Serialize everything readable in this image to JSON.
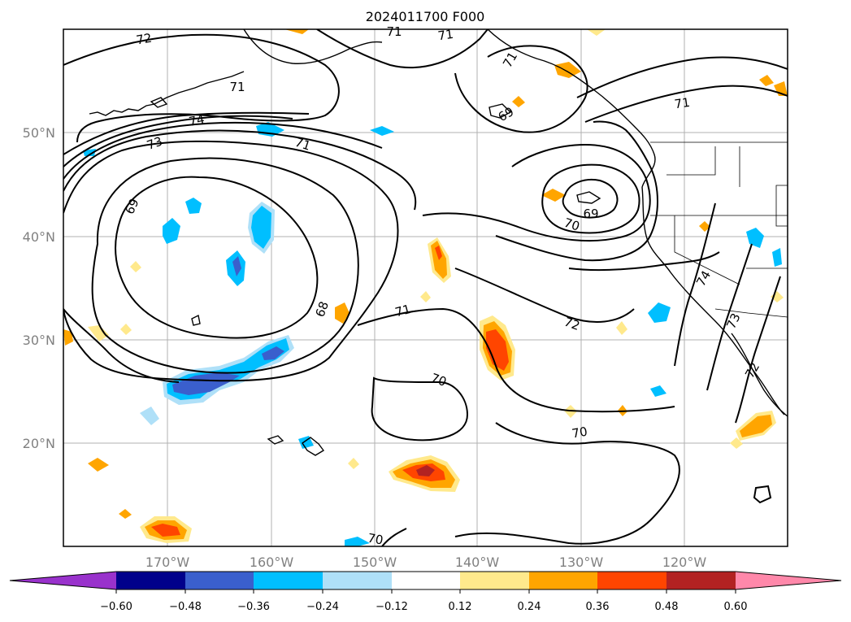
{
  "title": "2024011700 F000",
  "map": {
    "lon_labels": [
      "170°W",
      "160°W",
      "150°W",
      "140°W",
      "130°W",
      "120°W"
    ],
    "lat_labels": [
      "50°N",
      "40°N",
      "30°N",
      "20°N"
    ],
    "contour_labels": [
      "72",
      "71",
      "71",
      "71",
      "74",
      "73",
      "69",
      "71",
      "69",
      "71",
      "69",
      "70",
      "74",
      "68",
      "71",
      "72",
      "73",
      "70",
      "70",
      "70",
      "71",
      "72"
    ]
  },
  "colorbar": {
    "ticks": [
      "−0.60",
      "−0.48",
      "−0.36",
      "−0.24",
      "−0.12",
      "0.12",
      "0.24",
      "0.36",
      "0.48",
      "0.60"
    ],
    "colors": [
      "#9932cc",
      "#00008b",
      "#3a5fcd",
      "#00bfff",
      "#afe0f8",
      "#ffffff",
      "#ffe98c",
      "#ffa500",
      "#ff4500",
      "#b22222",
      "#ff88aa"
    ]
  }
}
